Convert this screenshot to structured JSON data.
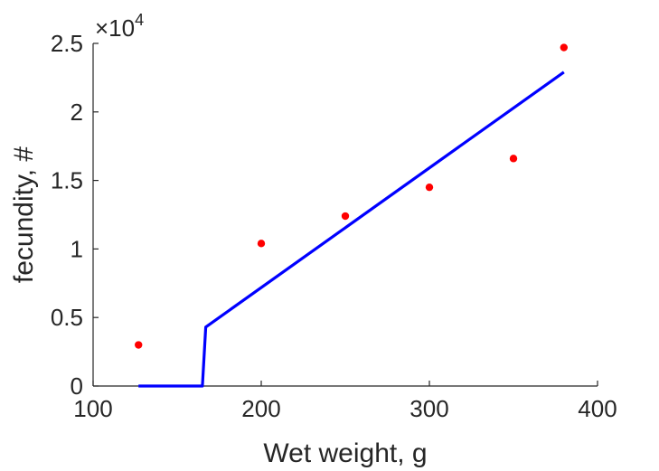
{
  "chart_data": {
    "type": "scatter",
    "xlabel": "Wet weight, g",
    "ylabel": "fecundity, #",
    "xlim": [
      100,
      400
    ],
    "ylim": [
      0,
      25000
    ],
    "y_exponent_label": "×10",
    "y_exponent_power": "4",
    "xticks": [
      100,
      200,
      300,
      400
    ],
    "yticks": [
      0,
      0.5,
      1,
      1.5,
      2,
      2.5
    ],
    "ytick_scale": 10000,
    "grid": false,
    "series": [
      {
        "kind": "points",
        "color": "#ff0000",
        "x": [
          127,
          200,
          250,
          300,
          350,
          380
        ],
        "y": [
          3000,
          10400,
          12400,
          14500,
          16600,
          24700
        ]
      },
      {
        "kind": "line",
        "color": "#0000ff",
        "x": [
          127,
          163,
          165,
          167,
          380
        ],
        "y": [
          0,
          0,
          0,
          4300,
          22900
        ]
      }
    ]
  }
}
